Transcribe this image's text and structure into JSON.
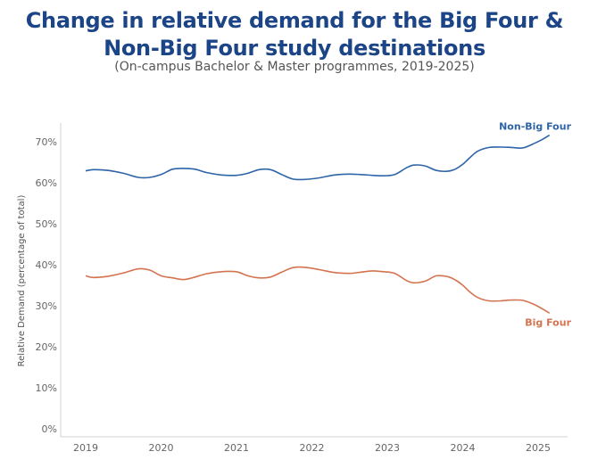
{
  "title_line1": "Change in relative demand for the Big Four &",
  "title_line2": "Non-Big Four study destinations",
  "subtitle": "(On-campus Bachelor & Master programmes, 2019-2025)",
  "chart_data": {
    "type": "line",
    "title": "Change in relative demand for the Big Four & Non-Big Four study destinations",
    "subtitle": "(On-campus Bachelor & Master programmes, 2019-2025)",
    "xlabel": "",
    "ylabel": "Relative Demand (percentage of total)",
    "xlim": [
      2019,
      2025.2
    ],
    "ylim": [
      0,
      70
    ],
    "x_ticks": [
      "2019",
      "2020",
      "2021",
      "2022",
      "2023",
      "2024",
      "2025"
    ],
    "y_ticks": [
      "0%",
      "10%",
      "20%",
      "30%",
      "40%",
      "50%",
      "60%",
      "70%"
    ],
    "y_tick_values": [
      0,
      10,
      20,
      30,
      40,
      50,
      60,
      70
    ],
    "grid": false,
    "series": [
      {
        "name": "Non-Big Four",
        "color": "#2e64a8",
        "x": [
          2019.0,
          2019.1,
          2019.3,
          2019.5,
          2019.7,
          2019.85,
          2020.0,
          2020.15,
          2020.3,
          2020.45,
          2020.6,
          2020.8,
          2021.0,
          2021.15,
          2021.3,
          2021.45,
          2021.6,
          2021.75,
          2021.9,
          2022.1,
          2022.3,
          2022.5,
          2022.65,
          2022.8,
          2022.95,
          2023.1,
          2023.25,
          2023.35,
          2023.5,
          2023.65,
          2023.8,
          2023.9,
          2024.0,
          2024.1,
          2024.2,
          2024.35,
          2024.5,
          2024.65,
          2024.8,
          2024.95,
          2025.05,
          2025.15
        ],
        "values": [
          62.9,
          63.2,
          63.0,
          62.3,
          61.3,
          61.3,
          62.0,
          63.3,
          63.5,
          63.3,
          62.5,
          61.9,
          61.8,
          62.3,
          63.2,
          63.2,
          62.0,
          60.9,
          60.8,
          61.2,
          61.9,
          62.1,
          62.0,
          61.8,
          61.7,
          62.0,
          63.6,
          64.3,
          64.1,
          63.0,
          62.8,
          63.3,
          64.5,
          66.2,
          67.7,
          68.6,
          68.7,
          68.6,
          68.5,
          69.6,
          70.5,
          71.6
        ]
      },
      {
        "name": "Big Four",
        "color": "#d4734f",
        "x": [
          2019.0,
          2019.1,
          2019.3,
          2019.5,
          2019.7,
          2019.85,
          2020.0,
          2020.15,
          2020.3,
          2020.45,
          2020.6,
          2020.8,
          2021.0,
          2021.15,
          2021.3,
          2021.45,
          2021.6,
          2021.75,
          2021.9,
          2022.1,
          2022.3,
          2022.5,
          2022.65,
          2022.8,
          2022.95,
          2023.1,
          2023.25,
          2023.35,
          2023.5,
          2023.65,
          2023.8,
          2023.9,
          2024.0,
          2024.1,
          2024.2,
          2024.35,
          2024.5,
          2024.65,
          2024.8,
          2024.95,
          2025.05,
          2025.15
        ],
        "values": [
          37.3,
          36.9,
          37.2,
          38.0,
          39.0,
          38.7,
          37.3,
          36.8,
          36.4,
          37.0,
          37.8,
          38.3,
          38.3,
          37.3,
          36.8,
          37.0,
          38.2,
          39.3,
          39.4,
          38.8,
          38.1,
          37.9,
          38.2,
          38.5,
          38.3,
          37.9,
          36.2,
          35.6,
          36.0,
          37.3,
          37.1,
          36.3,
          35.0,
          33.3,
          32.0,
          31.2,
          31.2,
          31.4,
          31.3,
          30.3,
          29.3,
          28.2
        ]
      }
    ]
  }
}
